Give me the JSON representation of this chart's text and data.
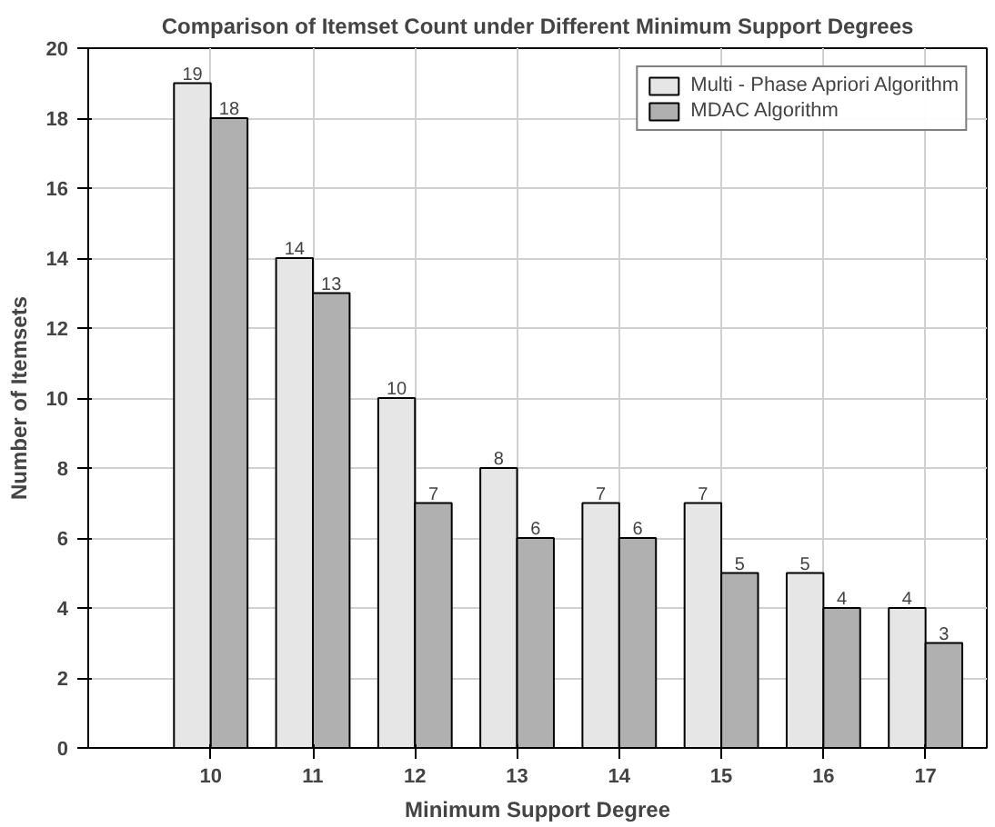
{
  "chart_data": {
    "type": "bar",
    "title": "Comparison of Itemset Count under Different Minimum Support Degrees",
    "xlabel": "Minimum Support Degree",
    "ylabel": "Number of Itemsets",
    "categories": [
      "10",
      "11",
      "12",
      "13",
      "14",
      "15",
      "16",
      "17"
    ],
    "series": [
      {
        "name": "Multi - Phase Apriori Algorithm",
        "color": "#e6e6e6",
        "values": [
          19,
          14,
          10,
          8,
          7,
          7,
          5,
          4
        ]
      },
      {
        "name": "MDAC Algorithm",
        "color": "#b0b0b0",
        "values": [
          18,
          13,
          7,
          6,
          6,
          5,
          4,
          3
        ]
      }
    ],
    "ylim": [
      0,
      20
    ],
    "yticks": [
      0,
      2,
      4,
      6,
      8,
      10,
      12,
      14,
      16,
      18,
      20
    ],
    "grid": true,
    "legend": "top right",
    "data_labels": true
  }
}
